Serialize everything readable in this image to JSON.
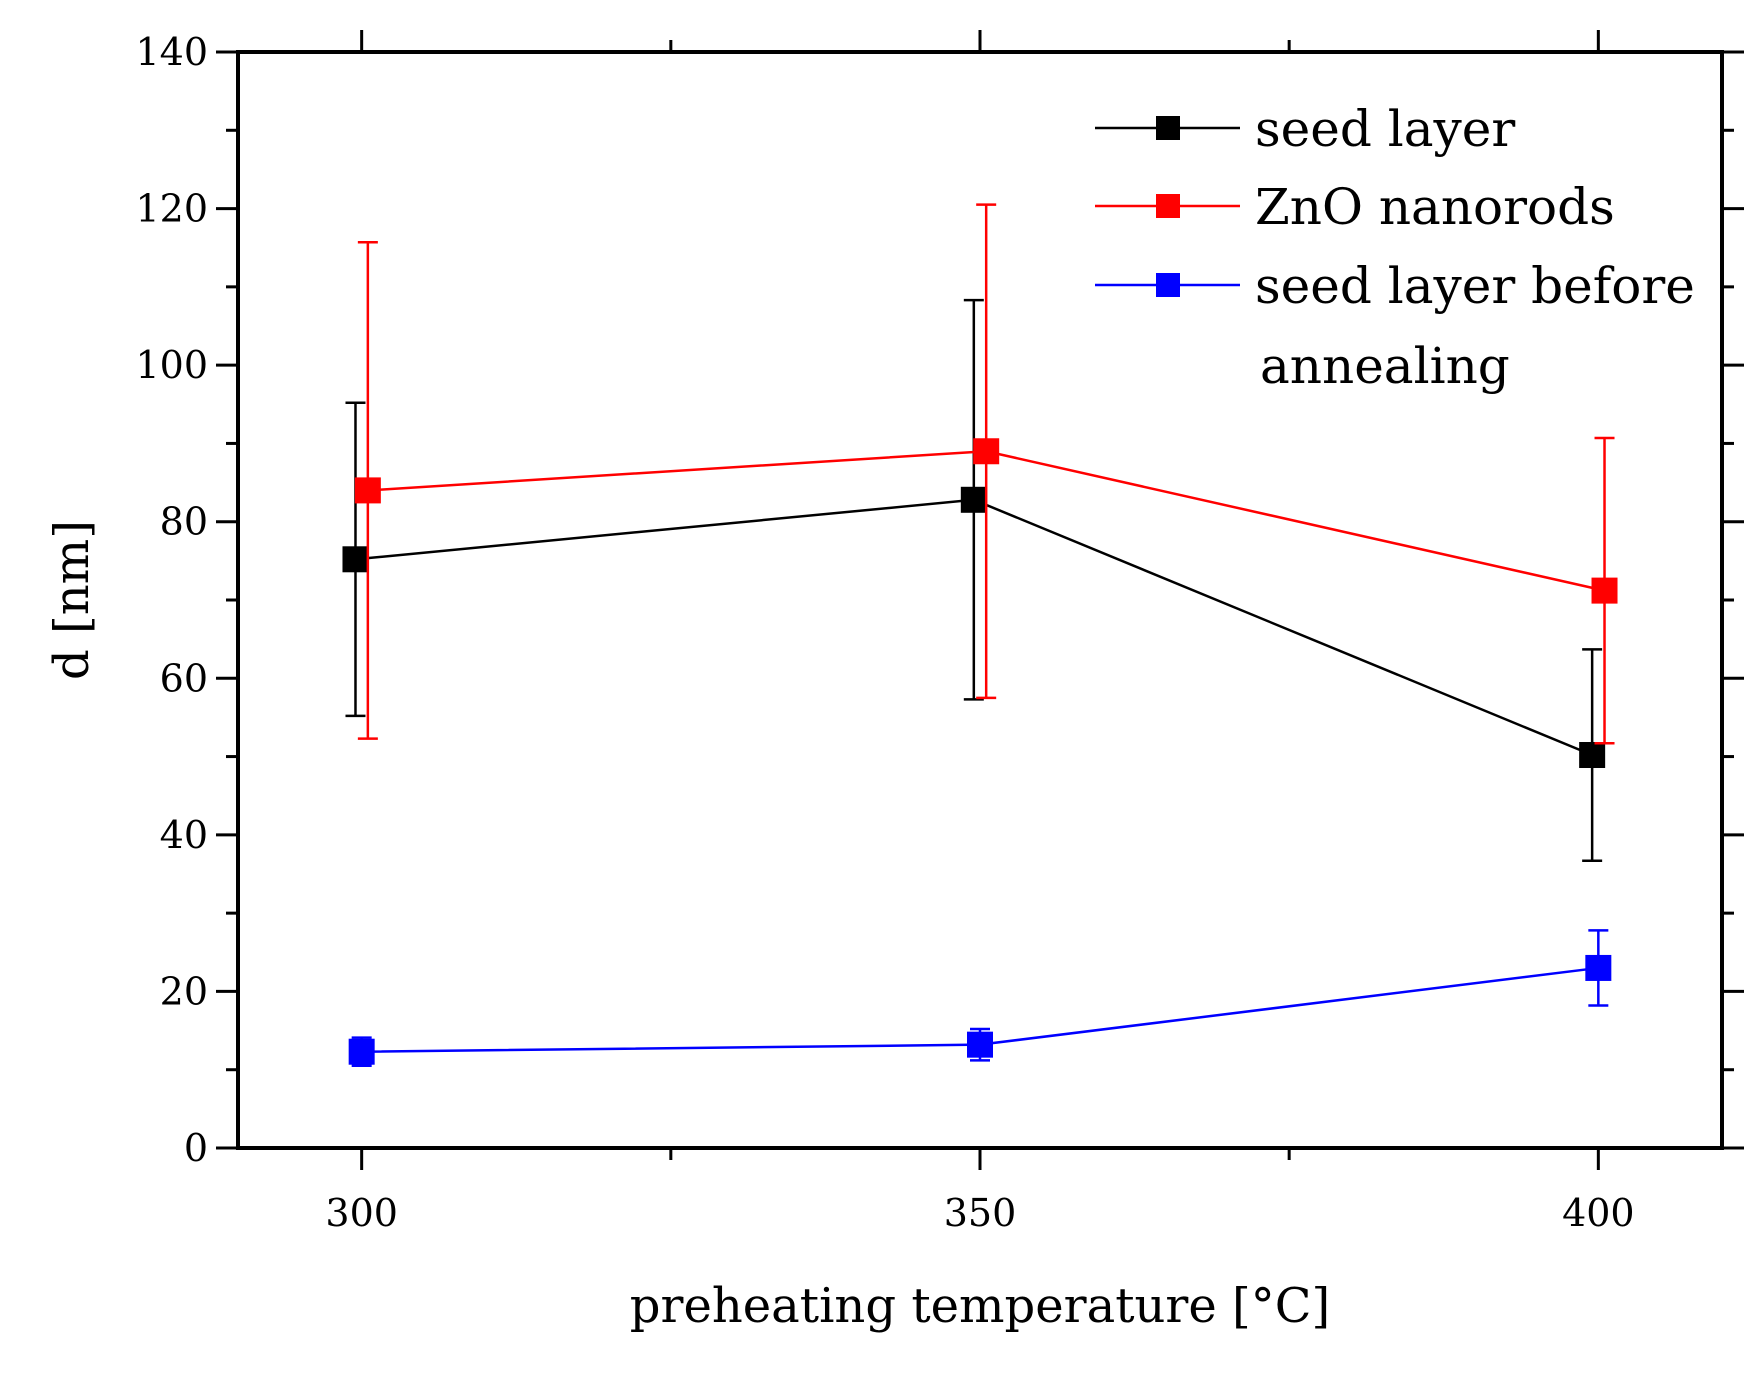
{
  "chart_data": {
    "type": "line",
    "title": "",
    "xlabel": "preheating temperature [°C]",
    "ylabel": "d [nm]",
    "xlim": [
      290,
      410
    ],
    "ylim": [
      0,
      140
    ],
    "xticks": [
      300,
      350,
      400
    ],
    "yticks": [
      0,
      20,
      40,
      60,
      80,
      100,
      120,
      140
    ],
    "x_minor_ticks": [
      325,
      375
    ],
    "y_minor_ticks": [
      10,
      30,
      50,
      70,
      90,
      110,
      130
    ],
    "grid": false,
    "legend_position": "top-right",
    "series": [
      {
        "name": "seed layer",
        "color": "#000000",
        "x": [
          299.5,
          349.5,
          399.5
        ],
        "values": [
          75.2,
          82.8,
          50.2
        ],
        "errors": [
          20,
          25.5,
          13.5
        ]
      },
      {
        "name": "ZnO nanorods",
        "color": "#ff0000",
        "x": [
          300.5,
          350.5,
          400.5
        ],
        "values": [
          84.0,
          89.0,
          71.2
        ],
        "errors": [
          31.7,
          31.5,
          19.5
        ]
      },
      {
        "name": "seed layer before annealing",
        "legend_lines": [
          "seed layer before",
          "annealing"
        ],
        "color": "#0000ff",
        "x": [
          300,
          350,
          400
        ],
        "values": [
          12.3,
          13.2,
          23.0
        ],
        "errors": [
          1.8,
          2.0,
          4.8
        ]
      }
    ]
  }
}
